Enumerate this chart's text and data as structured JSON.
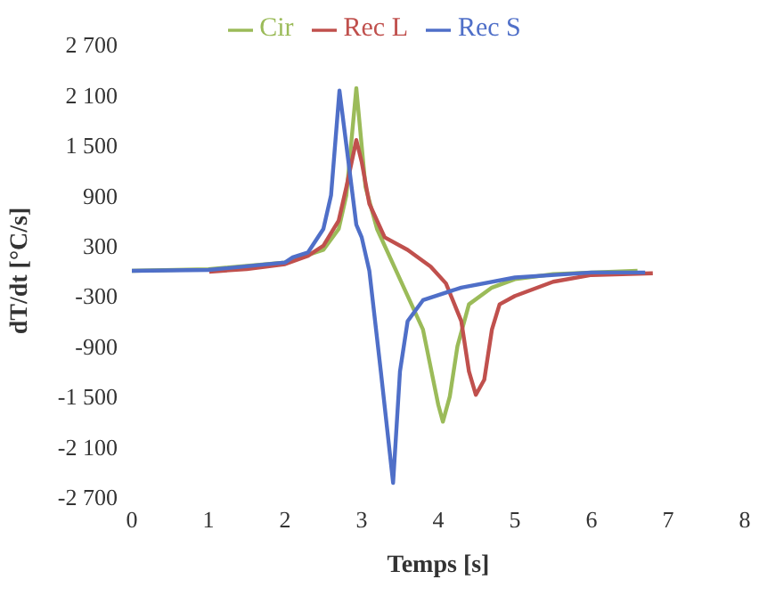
{
  "chart_data": {
    "type": "line",
    "xlabel": "Temps [s]",
    "ylabel": "dT/dt [°C/s]",
    "legend": "top",
    "grid": false,
    "marker": "none",
    "line_style": "solid",
    "xlim": [
      0,
      8
    ],
    "xticks": [
      0,
      1,
      2,
      3,
      4,
      5,
      6,
      7,
      8
    ],
    "ylim": [
      -2700,
      2700
    ],
    "yticks": [
      {
        "value": 2700,
        "label": "2 700"
      },
      {
        "value": 2100,
        "label": "2 100"
      },
      {
        "value": 1500,
        "label": "1 500"
      },
      900,
      300,
      -300,
      -900,
      {
        "value": -1500,
        "label": "-1 500"
      },
      {
        "value": -2100,
        "label": "-2 100"
      },
      {
        "value": -2700,
        "label": "-2 700"
      }
    ],
    "series": [
      {
        "name": "Cir",
        "color": "#9bbb59",
        "x": [
          0,
          1,
          2,
          2.5,
          2.7,
          2.8,
          2.93,
          3.05,
          3.2,
          3.5,
          3.8,
          4.0,
          4.06,
          4.15,
          4.25,
          4.4,
          4.7,
          5,
          5.5,
          6,
          6.6
        ],
        "values": [
          0,
          20,
          100,
          250,
          500,
          900,
          2180,
          1000,
          500,
          -100,
          -700,
          -1600,
          -1800,
          -1500,
          -900,
          -400,
          -200,
          -100,
          -40,
          -20,
          0
        ]
      },
      {
        "name": "Rec L",
        "color": "#c0504d",
        "x": [
          1.01,
          1.5,
          2,
          2.3,
          2.5,
          2.7,
          2.8,
          2.93,
          3.0,
          3.1,
          3.3,
          3.6,
          3.9,
          4.1,
          4.3,
          4.4,
          4.49,
          4.6,
          4.7,
          4.8,
          5,
          5.5,
          6,
          6.8
        ],
        "values": [
          -10,
          20,
          80,
          180,
          300,
          600,
          1000,
          1560,
          1300,
          800,
          400,
          250,
          50,
          -150,
          -600,
          -1200,
          -1480,
          -1300,
          -700,
          -400,
          -300,
          -130,
          -50,
          -30
        ]
      },
      {
        "name": "Rec S",
        "color": "#4f6fc8",
        "x": [
          0,
          1,
          2,
          2.1,
          2.3,
          2.5,
          2.6,
          2.71,
          2.8,
          2.93,
          3.0,
          3.1,
          3.25,
          3.41,
          3.5,
          3.6,
          3.8,
          4.3,
          5,
          6,
          6.7
        ],
        "values": [
          0,
          10,
          100,
          160,
          220,
          500,
          900,
          2150,
          1500,
          550,
          400,
          0,
          -1200,
          -2530,
          -1200,
          -600,
          -350,
          -200,
          -80,
          -20,
          -20
        ]
      }
    ]
  }
}
